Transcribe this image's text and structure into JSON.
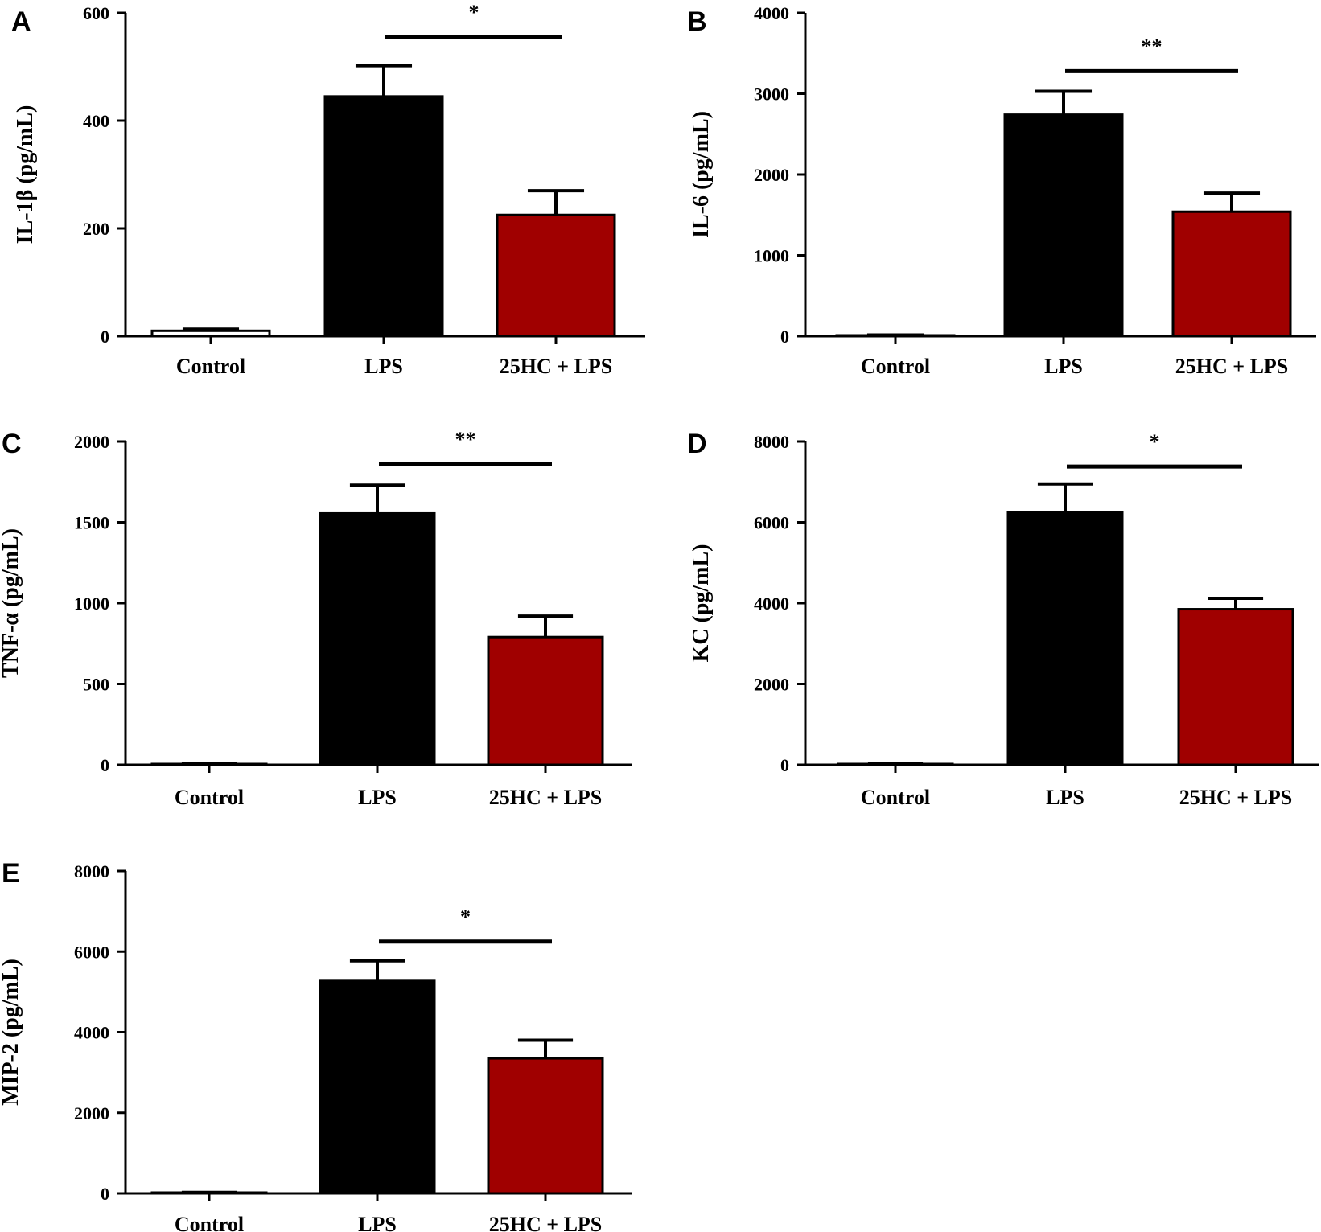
{
  "colors": {
    "control": "#ffffff",
    "lps": "#000000",
    "treated": "#a00000",
    "stroke": "#000000"
  },
  "chart_data": [
    {
      "panel": "A",
      "type": "bar",
      "ylabel": "IL-1β  (pg/mL)",
      "ylim": [
        0,
        600
      ],
      "yticks": [
        0,
        200,
        400,
        600
      ],
      "categories": [
        "Control",
        "LPS",
        "25HC + LPS"
      ],
      "values": [
        10,
        445,
        225
      ],
      "errors": [
        3,
        57,
        45
      ],
      "significance": {
        "from": 1,
        "to": 2,
        "label": "*",
        "level": 555
      }
    },
    {
      "panel": "B",
      "type": "bar",
      "ylabel": "IL-6  (pg/mL)",
      "ylim": [
        0,
        4000
      ],
      "yticks": [
        0,
        1000,
        2000,
        3000,
        4000
      ],
      "categories": [
        "Control",
        "LPS",
        "25HC + LPS"
      ],
      "values": [
        10,
        2740,
        1540
      ],
      "errors": [
        5,
        290,
        230
      ],
      "significance": {
        "from": 1,
        "to": 2,
        "label": "**",
        "level": 3280
      }
    },
    {
      "panel": "C",
      "type": "bar",
      "ylabel": "TNF-α (pg/mL)",
      "ylim": [
        0,
        2000
      ],
      "yticks": [
        0,
        500,
        1000,
        1500,
        2000
      ],
      "categories": [
        "Control",
        "LPS",
        "25HC + LPS"
      ],
      "values": [
        5,
        1555,
        790
      ],
      "errors": [
        3,
        175,
        130
      ],
      "significance": {
        "from": 1,
        "to": 2,
        "label": "**",
        "level": 1860
      }
    },
    {
      "panel": "D",
      "type": "bar",
      "ylabel": "KC (pg/mL)",
      "ylim": [
        0,
        8000
      ],
      "yticks": [
        0,
        2000,
        4000,
        6000,
        8000
      ],
      "categories": [
        "Control",
        "LPS",
        "25HC + LPS"
      ],
      "values": [
        20,
        6250,
        3850
      ],
      "errors": [
        5,
        700,
        270
      ],
      "significance": {
        "from": 1,
        "to": 2,
        "label": "*",
        "level": 7380
      }
    },
    {
      "panel": "E",
      "type": "bar",
      "ylabel": "MIP-2 (pg/mL)",
      "ylim": [
        0,
        8000
      ],
      "yticks": [
        0,
        2000,
        4000,
        6000,
        8000
      ],
      "categories": [
        "Control",
        "LPS",
        "25HC + LPS"
      ],
      "values": [
        20,
        5270,
        3350
      ],
      "errors": [
        5,
        500,
        450
      ],
      "significance": {
        "from": 1,
        "to": 2,
        "label": "*",
        "level": 6250
      }
    }
  ]
}
